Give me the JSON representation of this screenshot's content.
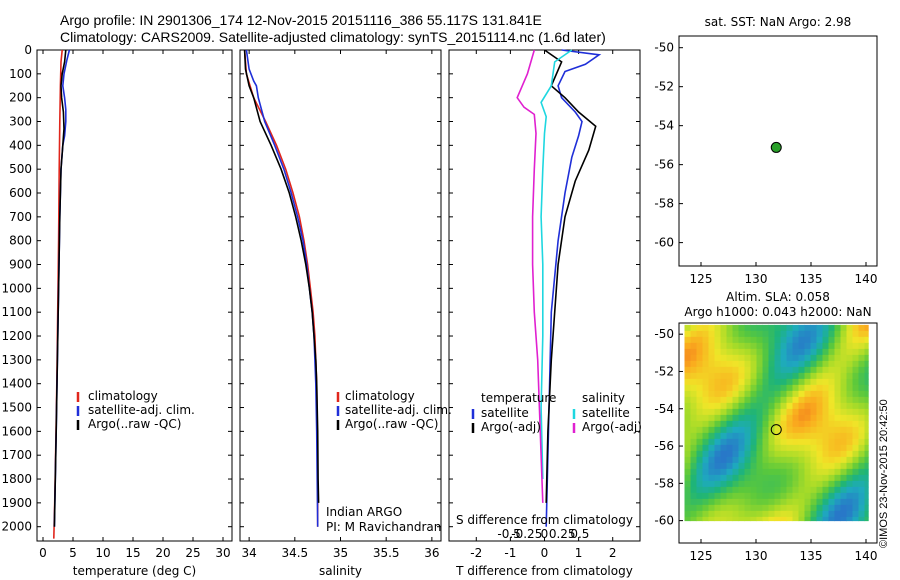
{
  "header": {
    "line1": "Argo profile: IN 2901306_174 12-Nov-2015 20151116_386 55.117S 131.841E",
    "line2": "Climatology: CARS2009. Satellite-adjusted climatology: synTS_20151114.nc (1.6d later)"
  },
  "credit": "©IMOS 23-Nov-2015 20:42:50",
  "colors": {
    "climatology": "#e0261c",
    "satellite": "#1f2fd8",
    "argo": "#000000",
    "cyan": "#1ed7e0",
    "magenta": "#e020d0",
    "marker": "#2aa02a"
  },
  "chart_data": [
    {
      "id": "temperature",
      "type": "line",
      "xlabel": "temperature (deg C)",
      "ylabel": "",
      "xlim": [
        -1,
        31.5
      ],
      "ylim": [
        0,
        2060
      ],
      "y_inverted": true,
      "xticks": [
        0,
        5,
        10,
        15,
        20,
        25,
        30
      ],
      "yticks": [
        0,
        100,
        200,
        300,
        400,
        500,
        600,
        700,
        800,
        900,
        1000,
        1100,
        1200,
        1300,
        1400,
        1500,
        1600,
        1700,
        1800,
        1900,
        2000
      ],
      "legend": [
        "climatology",
        "satellite-adj. clim.",
        "Argo(..raw -QC)"
      ],
      "series": [
        {
          "name": "climatology",
          "color": "red",
          "points": [
            [
              3.2,
              0
            ],
            [
              3.0,
              50
            ],
            [
              2.9,
              150
            ],
            [
              2.8,
              300
            ],
            [
              2.7,
              500
            ],
            [
              2.6,
              800
            ],
            [
              2.45,
              1100
            ],
            [
              2.3,
              1400
            ],
            [
              2.1,
              1700
            ],
            [
              1.95,
              1900
            ],
            [
              1.8,
              2050
            ]
          ]
        },
        {
          "name": "satellite-adj. clim.",
          "color": "blue",
          "points": [
            [
              4.4,
              0
            ],
            [
              4.0,
              40
            ],
            [
              3.5,
              100
            ],
            [
              3.3,
              150
            ],
            [
              3.6,
              200
            ],
            [
              3.8,
              250
            ],
            [
              3.8,
              300
            ],
            [
              3.6,
              360
            ],
            [
              3.3,
              400
            ],
            [
              3.0,
              500
            ],
            [
              2.8,
              700
            ],
            [
              2.6,
              1000
            ],
            [
              2.4,
              1300
            ],
            [
              2.2,
              1600
            ],
            [
              2.05,
              1800
            ],
            [
              1.9,
              2000
            ]
          ]
        },
        {
          "name": "Argo(..raw -QC)",
          "color": "black",
          "points": [
            [
              3.8,
              0
            ],
            [
              3.6,
              50
            ],
            [
              3.2,
              100
            ],
            [
              3.0,
              150
            ],
            [
              3.1,
              200
            ],
            [
              3.4,
              260
            ],
            [
              3.5,
              330
            ],
            [
              3.3,
              400
            ],
            [
              3.0,
              500
            ],
            [
              2.8,
              700
            ],
            [
              2.6,
              1000
            ],
            [
              2.4,
              1300
            ],
            [
              2.2,
              1600
            ],
            [
              2.05,
              1800
            ],
            [
              1.9,
              2000
            ]
          ]
        }
      ]
    },
    {
      "id": "salinity",
      "type": "line",
      "xlabel": "salinity",
      "ylabel": "",
      "xlim": [
        33.9,
        36.1
      ],
      "ylim": [
        0,
        2060
      ],
      "y_inverted": true,
      "xticks": [
        34,
        34.5,
        35,
        35.5,
        36
      ],
      "xticklabels": [
        "34",
        "34.5",
        "35",
        "35.5",
        "36"
      ],
      "legend": [
        "climatology",
        "satellite-adj. clim.",
        "Argo(..raw -QC)"
      ],
      "annotations": [
        "Indian ARGO",
        "PI: M Ravichandran"
      ],
      "series": [
        {
          "name": "climatology",
          "color": "red",
          "points": [
            [
              33.95,
              0
            ],
            [
              33.97,
              100
            ],
            [
              34.05,
              200
            ],
            [
              34.18,
              300
            ],
            [
              34.3,
              400
            ],
            [
              34.4,
              500
            ],
            [
              34.48,
              600
            ],
            [
              34.55,
              700
            ],
            [
              34.6,
              800
            ],
            [
              34.64,
              900
            ],
            [
              34.67,
              1000
            ],
            [
              34.7,
              1100
            ],
            [
              34.72,
              1200
            ],
            [
              34.73,
              1300
            ],
            [
              34.74,
              1400
            ],
            [
              34.745,
              1600
            ],
            [
              34.75,
              1800
            ],
            [
              34.75,
              2000
            ]
          ]
        },
        {
          "name": "satellite-adj. clim.",
          "color": "blue",
          "points": [
            [
              33.97,
              0
            ],
            [
              34.0,
              80
            ],
            [
              34.05,
              130
            ],
            [
              34.08,
              150
            ],
            [
              34.1,
              200
            ],
            [
              34.17,
              300
            ],
            [
              34.28,
              400
            ],
            [
              34.38,
              500
            ],
            [
              34.46,
              600
            ],
            [
              34.53,
              700
            ],
            [
              34.59,
              800
            ],
            [
              34.63,
              900
            ],
            [
              34.66,
              1000
            ],
            [
              34.69,
              1100
            ],
            [
              34.71,
              1200
            ],
            [
              34.72,
              1300
            ],
            [
              34.73,
              1400
            ],
            [
              34.74,
              1600
            ],
            [
              34.745,
              1800
            ],
            [
              34.75,
              2000
            ]
          ]
        },
        {
          "name": "Argo(..raw -QC)",
          "color": "black",
          "points": [
            [
              33.95,
              0
            ],
            [
              33.96,
              80
            ],
            [
              34.0,
              150
            ],
            [
              34.05,
              200
            ],
            [
              34.12,
              300
            ],
            [
              34.24,
              400
            ],
            [
              34.35,
              500
            ],
            [
              34.44,
              600
            ],
            [
              34.51,
              700
            ],
            [
              34.57,
              800
            ],
            [
              34.62,
              900
            ],
            [
              34.66,
              1000
            ],
            [
              34.69,
              1100
            ],
            [
              34.71,
              1200
            ],
            [
              34.73,
              1300
            ],
            [
              34.74,
              1400
            ],
            [
              34.75,
              1600
            ],
            [
              34.755,
              1800
            ],
            [
              34.76,
              1900
            ]
          ]
        }
      ]
    },
    {
      "id": "difference",
      "type": "line",
      "xlabel": "T difference from climatology",
      "xlabel2": "S difference from climatology",
      "xlim": [
        -2.8,
        2.8
      ],
      "ylim": [
        0,
        2060
      ],
      "y_inverted": true,
      "xticks": [
        -2,
        -1,
        0,
        1,
        2
      ],
      "xticks2": [
        -0.5,
        -0.25,
        0,
        0.25,
        0.5
      ],
      "xtick2labels": [
        "-0.5",
        "-0.25",
        "0",
        "0.25",
        "0.5"
      ],
      "legend_left_title": "temperature",
      "legend_left": [
        "satellite",
        "Argo(-adj)"
      ],
      "legend_right_title": "salinity",
      "legend_right": [
        "satellite",
        "Argo(-adj)"
      ],
      "series": [
        {
          "name": "temperature satellite",
          "color": "blue",
          "points": [
            [
              0.5,
              0
            ],
            [
              1.6,
              20
            ],
            [
              1.2,
              60
            ],
            [
              0.6,
              90
            ],
            [
              0.4,
              150
            ],
            [
              0.5,
              200
            ],
            [
              0.9,
              260
            ],
            [
              1.1,
              300
            ],
            [
              1.0,
              360
            ],
            [
              0.8,
              450
            ],
            [
              0.6,
              600
            ],
            [
              0.4,
              800
            ],
            [
              0.2,
              1100
            ],
            [
              0.15,
              1400
            ],
            [
              0.1,
              1700
            ],
            [
              0.05,
              2000
            ]
          ]
        },
        {
          "name": "temperature Argo(-adj)",
          "color": "black",
          "points": [
            [
              0.0,
              0
            ],
            [
              0.5,
              50
            ],
            [
              0.2,
              150
            ],
            [
              0.6,
              200
            ],
            [
              1.0,
              260
            ],
            [
              1.5,
              320
            ],
            [
              1.3,
              420
            ],
            [
              0.9,
              550
            ],
            [
              0.6,
              700
            ],
            [
              0.4,
              900
            ],
            [
              0.3,
              1100
            ],
            [
              0.2,
              1300
            ],
            [
              0.1,
              1600
            ],
            [
              0.05,
              1900
            ]
          ]
        },
        {
          "name": "salinity satellite",
          "color": "cyan",
          "points": [
            [
              0.8,
              0
            ],
            [
              0.3,
              50
            ],
            [
              0.2,
              150
            ],
            [
              -0.1,
              220
            ],
            [
              0.05,
              280
            ],
            [
              0.0,
              350
            ],
            [
              -0.05,
              500
            ],
            [
              -0.1,
              700
            ],
            [
              -0.05,
              900
            ],
            [
              -0.05,
              1200
            ],
            [
              -0.1,
              1500
            ],
            [
              -0.05,
              1800
            ]
          ]
        },
        {
          "name": "salinity Argo(-adj)",
          "color": "magenta",
          "points": [
            [
              -0.3,
              0
            ],
            [
              -0.5,
              100
            ],
            [
              -0.8,
              200
            ],
            [
              -0.6,
              240
            ],
            [
              -0.3,
              270
            ],
            [
              -0.25,
              350
            ],
            [
              -0.3,
              500
            ],
            [
              -0.35,
              700
            ],
            [
              -0.35,
              900
            ],
            [
              -0.3,
              1100
            ],
            [
              -0.2,
              1300
            ],
            [
              -0.15,
              1500
            ],
            [
              -0.1,
              1700
            ],
            [
              -0.05,
              1900
            ]
          ]
        }
      ]
    },
    {
      "id": "sst-map",
      "type": "scatter",
      "title": "sat. SST: NaN Argo: 2.98",
      "xlim": [
        123,
        141
      ],
      "ylim": [
        -61.2,
        -49.4
      ],
      "xticks": [
        125,
        130,
        135,
        140
      ],
      "yticks": [
        -50,
        -52,
        -54,
        -56,
        -58,
        -60
      ],
      "points": [
        [
          131.841,
          -55.117
        ]
      ]
    },
    {
      "id": "sla-map",
      "type": "heatmap",
      "title": "Altim. SLA: 0.058",
      "subtitle": "Argo h1000: 0.043 h2000: NaN",
      "xlim": [
        123,
        141
      ],
      "ylim": [
        -61.2,
        -49.4
      ],
      "xticks": [
        125,
        130,
        135,
        140
      ],
      "yticks": [
        -50,
        -52,
        -54,
        -56,
        -58,
        -60
      ],
      "data_extent": {
        "lon": [
          123.5,
          140.2
        ],
        "lat": [
          -60,
          -49.5
        ]
      },
      "points": [
        [
          131.841,
          -55.117
        ]
      ]
    }
  ]
}
